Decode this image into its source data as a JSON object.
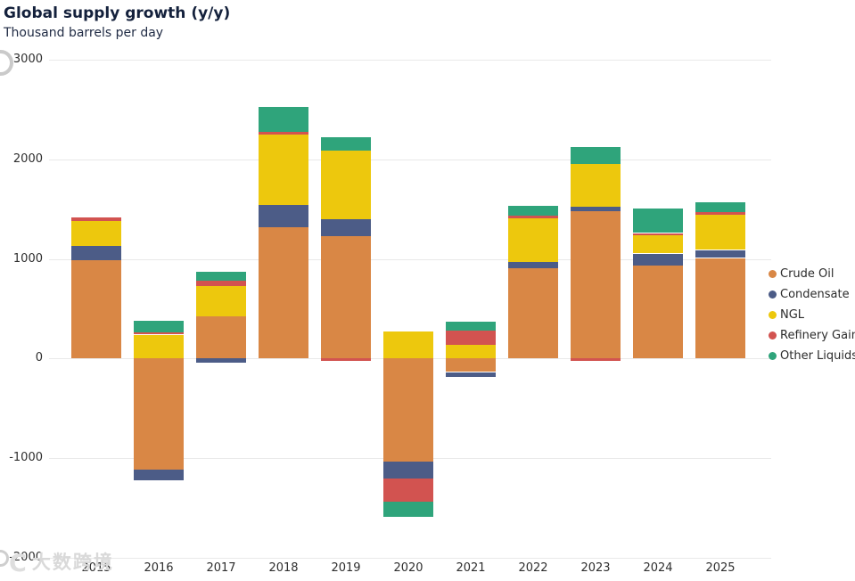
{
  "title": "Global supply growth (y/y)",
  "subtitle": "Thousand barrels per day",
  "watermark": {
    "logo_text": "C",
    "brand_text": "大数跨境"
  },
  "chart_data": {
    "type": "bar",
    "stacked": true,
    "title": "Global supply growth (y/y)",
    "subtitle": "Thousand barrels per day",
    "units": "Thousand barrels per day",
    "categories": [
      "2015",
      "2016",
      "2017",
      "2018",
      "2019",
      "2020",
      "2021",
      "2022",
      "2023",
      "2024",
      "2025"
    ],
    "series": [
      {
        "name": "Crude Oil",
        "color": "#D98745",
        "values": [
          985,
          -1115,
          420,
          1315,
          1225,
          -1035,
          -135,
          910,
          1480,
          935,
          1010
        ]
      },
      {
        "name": "Condensate",
        "color": "#4C5C87",
        "values": [
          145,
          -110,
          -45,
          230,
          170,
          -170,
          -45,
          60,
          45,
          120,
          80
        ]
      },
      {
        "name": "NGL",
        "color": "#EDC80D",
        "values": [
          255,
          240,
          305,
          705,
          695,
          275,
          135,
          440,
          425,
          180,
          355
        ]
      },
      {
        "name": "Refinery Gains",
        "color": "#D25350",
        "values": [
          30,
          20,
          60,
          25,
          -25,
          -230,
          145,
          25,
          -25,
          25,
          25
        ]
      },
      {
        "name": "Other Liquids",
        "color": "#2FA47B",
        "values": [
          0,
          120,
          85,
          250,
          135,
          -150,
          95,
          100,
          170,
          250,
          100
        ]
      }
    ],
    "ylim": [
      -2000,
      3000
    ],
    "yticks": [
      3000,
      2000,
      1000,
      0,
      -1000,
      -2000
    ],
    "grid": true,
    "legend_position": "right",
    "gridline_color": "#e9e9e9"
  }
}
